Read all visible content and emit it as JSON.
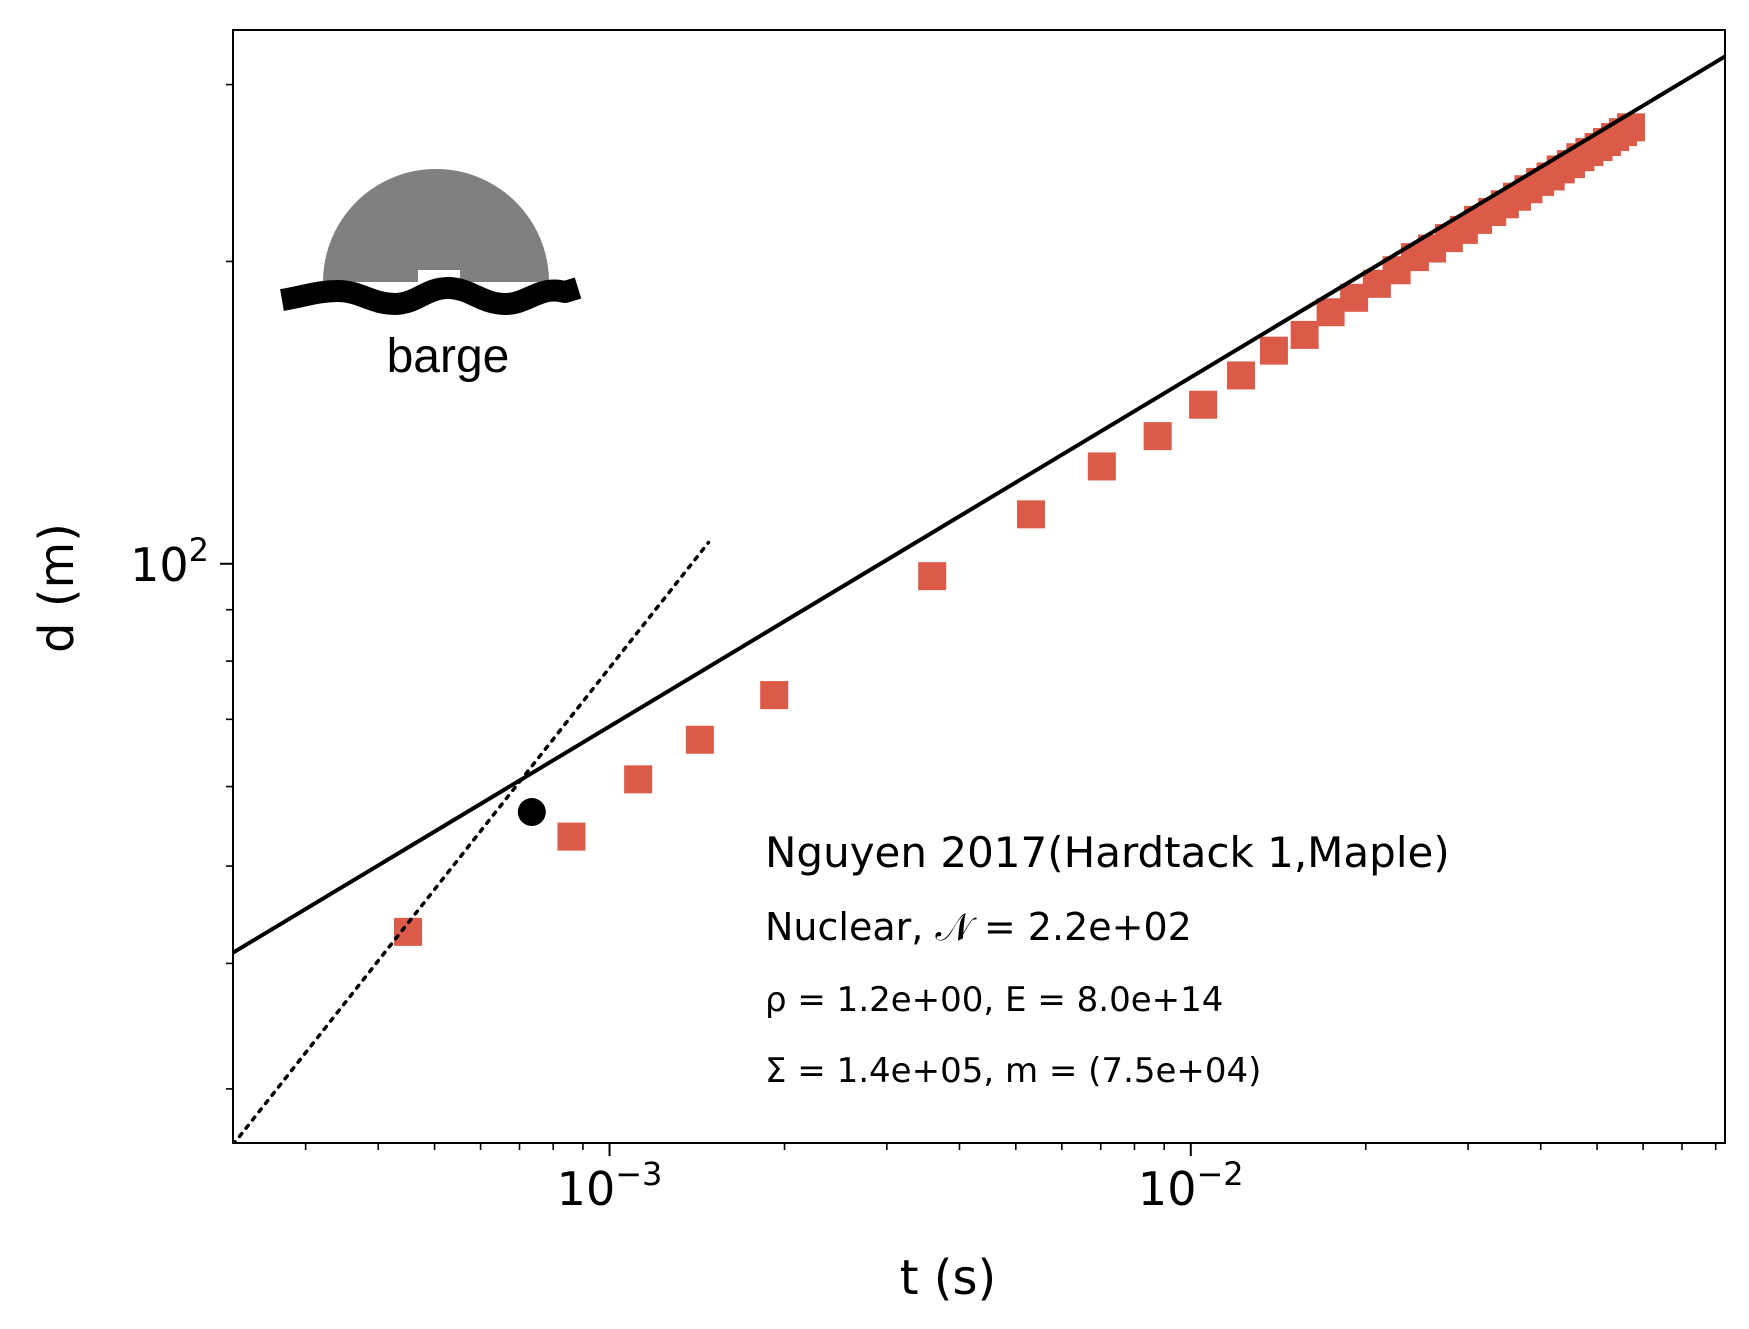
{
  "chart_data": {
    "type": "scatter",
    "xlabel": "t (s)",
    "ylabel": "d (m)",
    "x_scale": "log",
    "y_scale": "log",
    "xlim": [
      0.000225,
      0.083
    ],
    "ylim": [
      26.5,
      340
    ],
    "x_ticks": [
      {
        "value": 0.001,
        "base": "10",
        "exp": "−3"
      },
      {
        "value": 0.01,
        "base": "10",
        "exp": "−2"
      }
    ],
    "y_ticks": [
      {
        "value": 100,
        "base": "10",
        "exp": "2"
      }
    ],
    "grid": false,
    "colors": {
      "markers": "#dc5a48",
      "fit_line": "#000000",
      "dotted_line": "#000000",
      "transition_point": "#000000"
    },
    "series": [
      {
        "marker": "square",
        "points": [
          [
            0.00045,
            43.0
          ],
          [
            0.00086,
            53.5
          ],
          [
            0.00112,
            61.0
          ],
          [
            0.00143,
            66.8
          ],
          [
            0.00192,
            74.0
          ],
          [
            0.00359,
            97.2
          ],
          [
            0.00531,
            112.0
          ],
          [
            0.00703,
            125.0
          ],
          [
            0.00877,
            134.0
          ],
          [
            0.0105,
            144.0
          ],
          [
            0.0122,
            154.0
          ],
          [
            0.0139,
            163.0
          ],
          [
            0.0157,
            169.0
          ],
          [
            0.0174,
            178.0
          ],
          [
            0.0191,
            184.0
          ],
          [
            0.0209,
            190.0
          ],
          [
            0.0226,
            196.0
          ],
          [
            0.0243,
            202.0
          ],
          [
            0.026,
            206.0
          ],
          [
            0.0278,
            211.0
          ],
          [
            0.0295,
            215.0
          ],
          [
            0.0312,
            220.0
          ],
          [
            0.033,
            224.0
          ],
          [
            0.0347,
            228.0
          ],
          [
            0.0364,
            232.0
          ],
          [
            0.0381,
            236.0
          ],
          [
            0.0399,
            240.0
          ],
          [
            0.0416,
            243.0
          ],
          [
            0.0433,
            247.0
          ],
          [
            0.0451,
            250.0
          ],
          [
            0.0468,
            254.0
          ],
          [
            0.0485,
            257.0
          ],
          [
            0.0503,
            260.0
          ],
          [
            0.052,
            263.0
          ],
          [
            0.0537,
            266.0
          ],
          [
            0.0554,
            269.0
          ],
          [
            0.0572,
            272.0
          ]
        ]
      }
    ],
    "fit_line": {
      "x": [
        0.000225,
        0.083
      ],
      "y": [
        41.0,
        320.0
      ]
    },
    "dotted_line": {
      "x": [
        0.000225,
        0.00148
      ],
      "y": [
        26.4,
        105.0
      ]
    },
    "transition_point": {
      "x": 0.000735,
      "y": 56.6
    }
  },
  "annotation": {
    "line1": "Nguyen 2017(Hardtack 1,Maple)",
    "line2": "Nuclear, 𝒩 = 2.2e+02",
    "line3": "ρ = 1.2e+00, E = 8.0e+14",
    "line4": "Σ = 1.4e+05, m = (7.5e+04)"
  },
  "inset": {
    "label": "barge",
    "icon": "barge-explosion-icon"
  }
}
